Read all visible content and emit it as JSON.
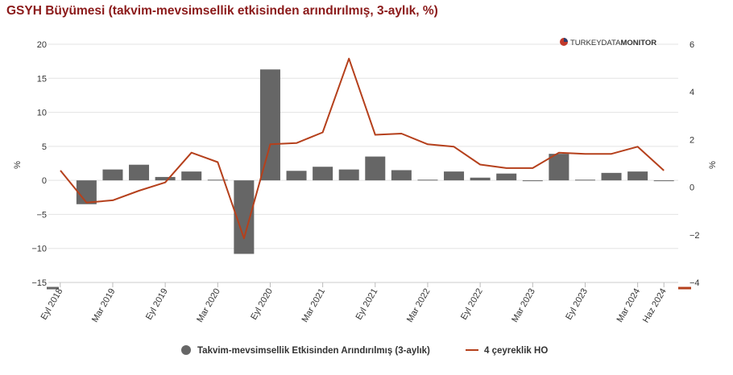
{
  "title": "GSYH Büyümesi (takvim-mevsimsellik etkisinden arındırılmış, 3-aylık, %)",
  "brand": {
    "text_light": "TURKEYDATA",
    "text_bold": "MONITOR"
  },
  "chart_data": {
    "type": "bar",
    "categories": [
      "2018Q3",
      "2018Q4",
      "2019Q1",
      "2019Q2",
      "2019Q3",
      "2019Q4",
      "2020Q1",
      "2020Q2",
      "2020Q3",
      "2020Q4",
      "2021Q1",
      "2021Q2",
      "2021Q3",
      "2021Q4",
      "2022Q1",
      "2022Q2",
      "2022Q3",
      "2022Q4",
      "2023Q1",
      "2023Q2",
      "2023Q3",
      "2023Q4",
      "2024Q1",
      "2024Q2"
    ],
    "x_tick_labels": [
      "Eyl 2018",
      "Mar 2019",
      "Eyl 2019",
      "Mar 2020",
      "Eyl 2020",
      "Mar 2021",
      "Eyl 2021",
      "Mar 2022",
      "Eyl 2022",
      "Mar 2023",
      "Eyl 2023",
      "Mar 2024",
      "Haz 2024"
    ],
    "series": [
      {
        "name": "Takvim-mevsimsellik Etkisinden Arındırılmış (3-aylık)",
        "type": "bar",
        "axis": "left",
        "color": "#666666",
        "values": [
          null,
          -3.5,
          1.6,
          2.3,
          0.5,
          1.3,
          0.1,
          -10.8,
          16.3,
          1.4,
          2.0,
          1.6,
          3.5,
          1.5,
          0.1,
          1.3,
          0.4,
          1.0,
          -0.1,
          3.9,
          0.1,
          1.1,
          1.3,
          -0.1
        ]
      },
      {
        "name": "4 çeyreklik HO",
        "type": "line",
        "axis": "right",
        "color": "#b5401c",
        "values": [
          0.7,
          -0.65,
          -0.55,
          -0.15,
          0.2,
          1.45,
          1.05,
          -2.15,
          1.8,
          1.85,
          2.3,
          5.4,
          2.2,
          2.25,
          1.8,
          1.7,
          0.95,
          0.8,
          0.8,
          1.45,
          1.4,
          1.4,
          1.7,
          0.7
        ]
      }
    ],
    "left_axis": {
      "label": "%",
      "ylim": [
        -15,
        20
      ],
      "ticks": [
        20,
        15,
        10,
        5,
        0,
        -5,
        -10,
        -15
      ],
      "tick_labels": [
        "20",
        "15",
        "10",
        "5",
        "0",
        "−5",
        "−10",
        "−15"
      ]
    },
    "right_axis": {
      "label": "%",
      "ylim": [
        -4,
        6
      ],
      "ticks": [
        6,
        4,
        2,
        0,
        -2,
        -4
      ],
      "tick_labels": [
        "6",
        "4",
        "2",
        "0",
        "−2",
        "−4"
      ]
    },
    "grid": true,
    "legend_position": "bottom"
  }
}
